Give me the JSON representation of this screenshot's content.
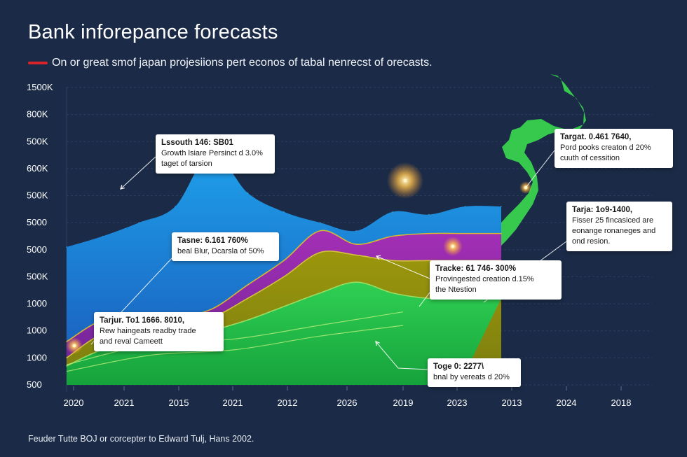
{
  "title": "Bank inforepance forecasts",
  "subtitle": "On or great smof japan projesiions pert econos of tabal nenrecst of orecasts.",
  "footer": "Feuder Tutte BOJ or corcepter to Edward Tulj, Hans 2002.",
  "colors": {
    "background": "#1b2b47",
    "subtitle_marker": "#d8232a",
    "blue": "#1e86d6",
    "purple": "#8a2aa3",
    "olive": "#8a8a0a",
    "green": "#2ec24a",
    "map": "#38d24f"
  },
  "decoration": {
    "map_silhouette": "japan-map"
  },
  "chart_data": {
    "type": "area",
    "title": "Bank inforepance forecasts",
    "subtitle": "On or great smof japan projesiions pert econos of tabal nenrecst of orecasts.",
    "x_tick_labels": [
      "2020",
      "2021",
      "2015",
      "2021",
      "2012",
      "2026",
      "2019",
      "2023",
      "2013",
      "2024",
      "2018"
    ],
    "y_tick_labels": [
      "1500K",
      "800K",
      "500K",
      "600K",
      "500K",
      "5000",
      "5000",
      "500K",
      "1000",
      "1000",
      "1000",
      "500"
    ],
    "grid": true,
    "legend": "none",
    "series": [
      {
        "color": "#1e86d6",
        "values": [
          5.1,
          5.5,
          6.0,
          6.6,
          8.6,
          7.1,
          6.4,
          6.0,
          5.7,
          6.4,
          6.3,
          6.6,
          6.6
        ]
      },
      {
        "color": "#8a2aa3",
        "values": [
          1.6,
          2.4,
          2.4,
          2.5,
          2.8,
          3.7,
          4.6,
          5.7,
          5.2,
          5.5,
          5.6,
          5.6,
          5.6
        ]
      },
      {
        "color": "#8a8a0a",
        "values": [
          1.0,
          1.9,
          2.1,
          2.4,
          2.5,
          3.2,
          4.0,
          4.9,
          4.8,
          4.6,
          4.6,
          4.6,
          4.6
        ]
      },
      {
        "color": "#2ec24a",
        "values": [
          0.7,
          1.3,
          1.4,
          1.6,
          2.0,
          2.4,
          2.9,
          3.4,
          3.8,
          3.4,
          3.2,
          3.2,
          3.2
        ]
      }
    ],
    "annotations": [
      {
        "title": "Lssouth 146: SB01",
        "body": "Growth lsiare Persinct d 3.0%\ntaget of tarsion"
      },
      {
        "title": "Targat. 0.461 7640,",
        "body": "Pord pooks creaton d 20%\ncuuth of cessition"
      },
      {
        "title": "Tasne: 6.161 760%",
        "body": "beal Blur, Dcarsla of 50%"
      },
      {
        "title": "Tarja: 1o9-1400,",
        "body": "Fisser 25 fincasiced are\neonange ronaneges and\nond resion."
      },
      {
        "title": "Tracke: 61 746- 300%",
        "body": "Provingested creation d.15%\nthe Ntestion"
      },
      {
        "title": "Tarjur. To1 1666. 8010,",
        "body": "Rew haingeats readby trade\nand reval Cameett"
      },
      {
        "title": "Toge 0: 2277\\",
        "body": "bnal by vereats d 20%"
      }
    ]
  }
}
